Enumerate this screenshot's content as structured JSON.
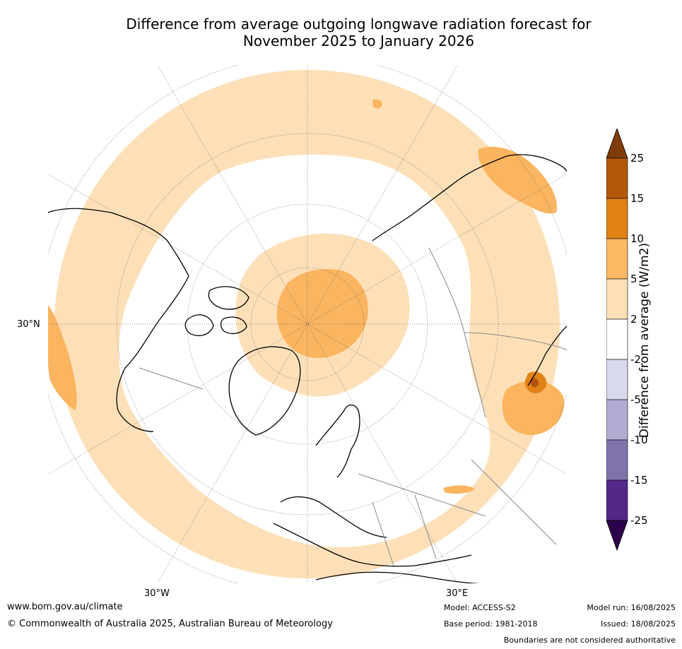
{
  "title_line1": "Difference from average outgoing longwave radiation forecast for",
  "title_line2": "November 2025 to January 2026",
  "map": {
    "projection": "north-polar-stereographic",
    "lat_label": "30°N",
    "lon_labels": [
      "30°W",
      "30°E"
    ],
    "colors": {
      "pos_2_5": "#fde0b8",
      "pos_5_10": "#fbb45f",
      "pos_10_15": "#e08218",
      "pos_15_25": "#b35509",
      "neg_2_5": "#d8d9ea",
      "neg_5_10": "#b2abd2",
      "coast": "#000000",
      "border": "#888888"
    }
  },
  "colorbar": {
    "label": "Difference from average (W/m2)",
    "ticks": [
      "25",
      "15",
      "10",
      "5",
      "2",
      "-2",
      "-5",
      "-10",
      "-15",
      "-25"
    ],
    "colors": [
      "#7f3b08",
      "#b35809",
      "#e08214",
      "#fdb863",
      "#fee0b6",
      "#ffffff",
      "#d8daeb",
      "#b2abd2",
      "#8073ac",
      "#542788",
      "#2d004b"
    ]
  },
  "footer": {
    "website": "www.bom.gov.au/climate",
    "copyright": "© Commonwealth of Australia 2025, Australian Bureau of Meteorology",
    "model": "Model: ACCESS-S2",
    "base_period": "Base period: 1981-2018",
    "model_run": "Model run: 16/08/2025",
    "issued": "Issued: 18/08/2025",
    "disclaimer": "Boundaries are not considered authoritative"
  }
}
